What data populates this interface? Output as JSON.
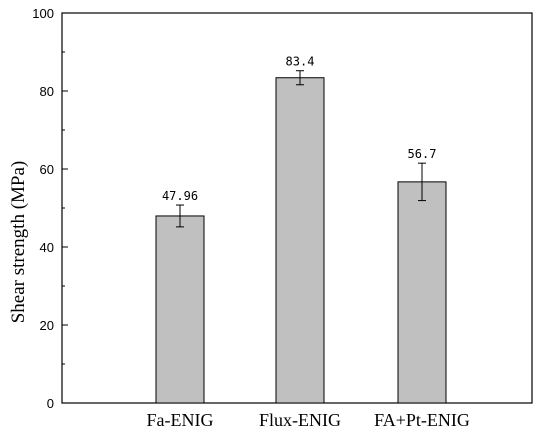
{
  "chart_data": {
    "type": "bar",
    "categories": [
      "Fa-ENIG",
      "Flux-ENIG",
      "FA+Pt-ENIG"
    ],
    "values": [
      47.96,
      83.4,
      56.7
    ],
    "errors": [
      2.8,
      1.8,
      4.8
    ],
    "data_labels": [
      "47.96",
      "83.4",
      "56.7"
    ],
    "ylabel": "Shear strength (MPa)",
    "xlabel": "",
    "ylim": [
      0,
      100
    ],
    "yticks": [
      0,
      20,
      40,
      60,
      80,
      100
    ],
    "bar_color": "#c0c0c0",
    "grid": false,
    "legend": "none"
  }
}
